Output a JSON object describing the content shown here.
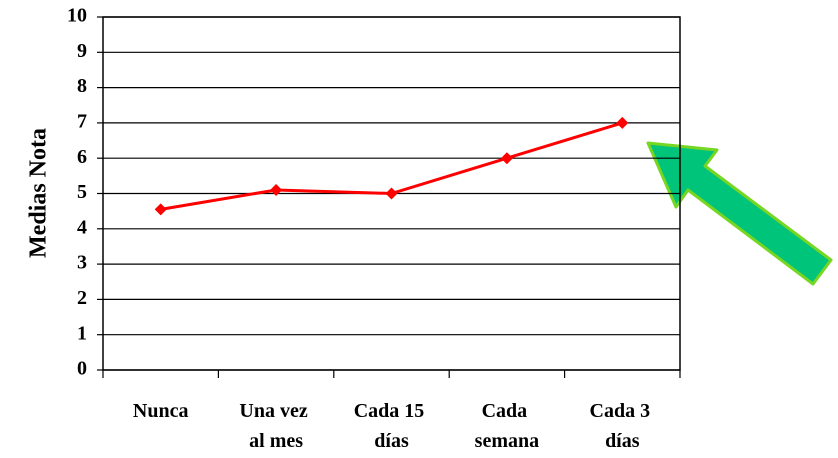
{
  "chart_data": {
    "type": "line",
    "y_label": "Medias Nota",
    "categories": [
      "Nunca",
      "Una vez al mes",
      "Cada 15 días",
      "Cada semana",
      "Cada 3 días"
    ],
    "series": [
      {
        "name": "Medias Nota",
        "color": "#ff0000",
        "values": [
          4.55,
          5.1,
          5,
          6,
          7
        ]
      }
    ],
    "ylim": [
      0,
      10
    ],
    "yticks": [
      0,
      1,
      2,
      3,
      4,
      5,
      6,
      7,
      8,
      9,
      10
    ],
    "grid": true
  }
}
